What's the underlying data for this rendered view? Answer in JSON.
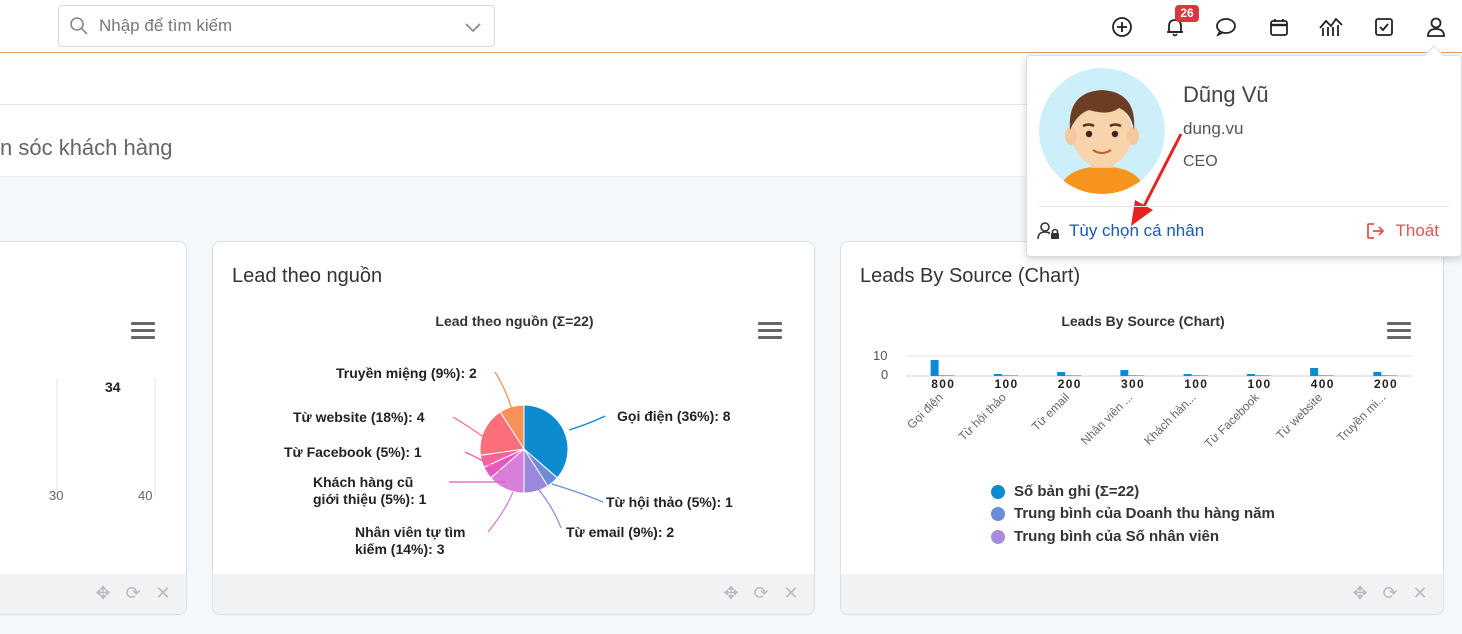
{
  "search": {
    "placeholder": "Nhập để tìm kiếm"
  },
  "notifications": {
    "badge": "26"
  },
  "page": {
    "title_partial": "n sóc khách hàng"
  },
  "card_left": {
    "bar_value_label": "34",
    "axis_ticks": [
      "30",
      "40"
    ]
  },
  "card_pie": {
    "title": "Lead theo nguồn",
    "chart_title": "Lead theo nguồn (Σ=22)"
  },
  "card_bar": {
    "title": "Leads By Source (Chart)",
    "chart_title": "Leads By Source (Chart)",
    "y_ticks": [
      "10",
      "0"
    ]
  },
  "chart_data": [
    {
      "type": "bar",
      "orientation": "horizontal",
      "values": [
        34
      ],
      "x_ticks": [
        30,
        40
      ],
      "colors": [
        "#0d8bd1"
      ]
    },
    {
      "type": "pie",
      "title": "Lead theo nguồn (Σ=22)",
      "slices": [
        {
          "label": "Gọi điện (36%): 8",
          "value": 8,
          "color": "#0d8bd1"
        },
        {
          "label": "Từ hội thảo (5%): 1",
          "value": 1,
          "color": "#6b8dd9"
        },
        {
          "label": "Từ email (9%): 2",
          "value": 2,
          "color": "#9b88dc"
        },
        {
          "label": "Nhân viên tự tìm kiếm (14%): 3",
          "value": 3,
          "color": "#d77fd9"
        },
        {
          "label": "Khách hàng cũ giới thiệu (5%): 1",
          "value": 1,
          "color": "#e457c7"
        },
        {
          "label": "Từ Facebook (5%): 1",
          "value": 1,
          "color": "#f3649c"
        },
        {
          "label": "Từ website (18%): 4",
          "value": 4,
          "color": "#fb6e7a"
        },
        {
          "label": "Truyền miệng (9%): 2",
          "value": 2,
          "color": "#f89157"
        }
      ]
    },
    {
      "type": "bar",
      "title": "Leads By Source (Chart)",
      "categories": [
        "Gọi điện",
        "Từ hội thảo",
        "Từ email",
        "Nhân viên ...",
        "Khách hàn...",
        "Từ Facebook",
        "Từ website",
        "Truyền mi..."
      ],
      "series": [
        {
          "name": "Số bản ghi (Σ=22)",
          "values": [
            8,
            1,
            2,
            3,
            1,
            1,
            4,
            2
          ],
          "color": "#0d8bd1"
        },
        {
          "name": "Trung bình của Doanh thu hàng năm",
          "values": [
            0,
            0,
            0,
            0,
            0,
            0,
            0,
            0
          ],
          "color": "#6b8dd9"
        },
        {
          "name": "Trung bình của Số nhân viên",
          "values": [
            0,
            0,
            0,
            0,
            0,
            0,
            0,
            0
          ],
          "color": "#a88ddc"
        }
      ],
      "ylim": [
        0,
        10
      ],
      "y_ticks": [
        0,
        10
      ],
      "legend_position": "bottom"
    }
  ],
  "profile": {
    "name": "Dũng Vũ",
    "login": "dung.vu",
    "role": "CEO",
    "settings_label": "Tùy chọn cá nhân",
    "logout_label": "Thoát"
  }
}
